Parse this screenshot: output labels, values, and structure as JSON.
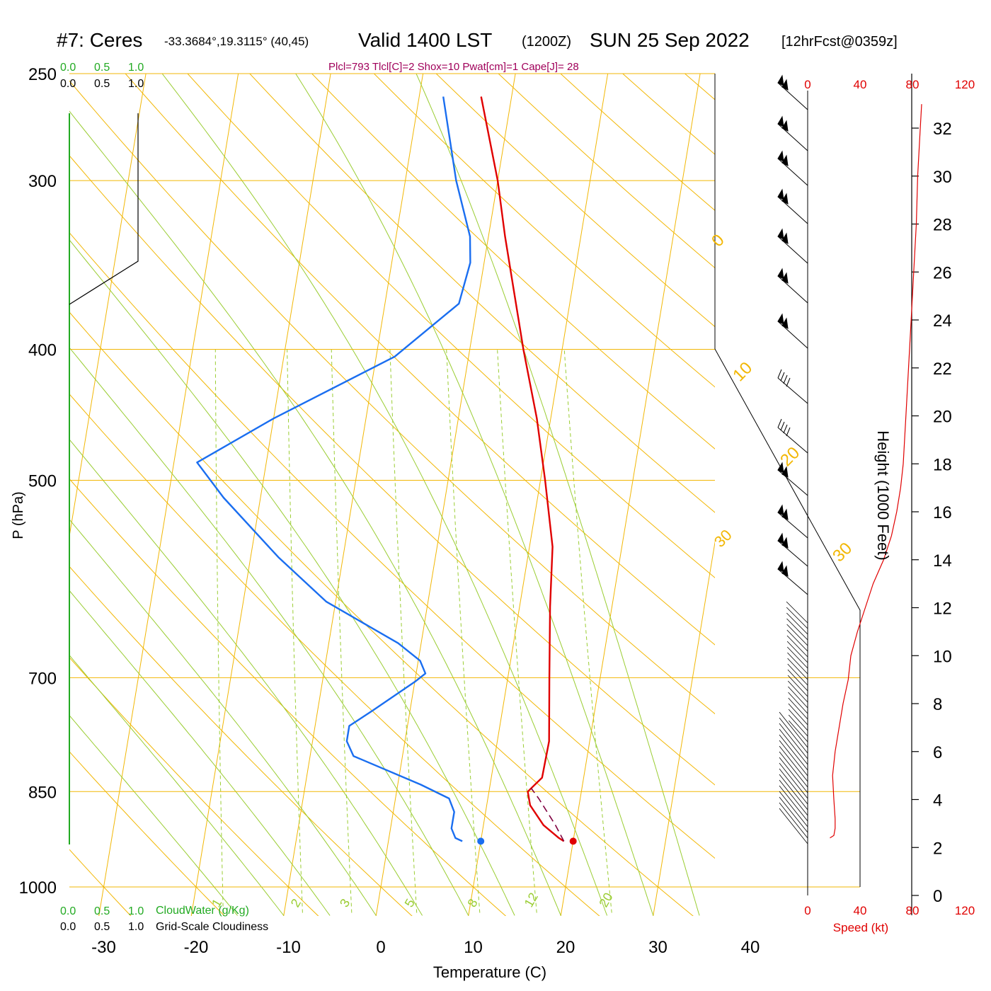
{
  "header": {
    "station": "#7: Ceres",
    "coords": "-33.3684°,19.3115° (40,45)",
    "valid": "Valid 1400 LST",
    "zulu": "(1200Z)",
    "date": "SUN 25 Sep 2022",
    "forecast": "[12hrFcst@0359z]",
    "indices": "Plcl=793 Tlcl[C]=2 Shox=10 Pwat[cm]=1 Cape[J]= 28"
  },
  "colors": {
    "isobar": "#f2b705",
    "dry_adiabat": "#f2b705",
    "moist_adiabat": "#9acd32",
    "mixing_ratio": "#9acd32",
    "temperature": "#e00000",
    "dewpoint": "#1a6ef0",
    "parcel": "#800040",
    "cloudwater": "#22aa22",
    "speed": "#e00000",
    "indices_text": "#a0005a"
  },
  "cloud_scales": {
    "cloudwater_ticks": [
      "0.0",
      "0.5",
      "1.0"
    ],
    "cloudiness_ticks": [
      "0.0",
      "0.5",
      "1.0"
    ],
    "cloudwater_label": "CloudWater (g/Kg)",
    "cloudiness_label": "Grid-Scale Cloudiness"
  },
  "axes": {
    "xlabel": "Temperature (C)",
    "ylabel": "P (hPa)",
    "right_label": "Height (1000 Feet)",
    "speed_label": "Speed (kt)",
    "x_ticks": [
      -30,
      -20,
      -10,
      0,
      10,
      20,
      30,
      40
    ],
    "p_ticks": [
      250,
      300,
      400,
      500,
      700,
      850,
      1000
    ],
    "height_ticks": [
      0,
      2,
      4,
      6,
      8,
      10,
      12,
      14,
      16,
      18,
      20,
      22,
      24,
      26,
      28,
      30,
      32
    ],
    "speed_ticks": [
      0,
      40,
      80,
      120
    ],
    "xlim": [
      -33,
      36
    ],
    "plim": [
      250,
      1025
    ],
    "height_lim": [
      0,
      33
    ],
    "speed_lim": [
      0,
      120
    ]
  },
  "chart_data": {
    "type": "line",
    "title": "#7: Ceres Valid 1400 LST (1200Z) SUN 25 Sep 2022 [12hrFcst@0359z]",
    "xlabel": "Temperature (C)",
    "ylabel": "P (hPa)",
    "yscale": "log",
    "skew_per_decade": 24.2,
    "series": [
      {
        "name": "Temperature",
        "points": [
          [
            260,
            -3.3
          ],
          [
            300,
            0
          ],
          [
            330,
            1.8
          ],
          [
            400,
            5.8
          ],
          [
            450,
            8.5
          ],
          [
            500,
            10.5
          ],
          [
            560,
            12.5
          ],
          [
            620,
            13.3
          ],
          [
            700,
            14.5
          ],
          [
            780,
            15.6
          ],
          [
            830,
            15.5
          ],
          [
            850,
            14.2
          ],
          [
            870,
            14.7
          ],
          [
            900,
            16.5
          ],
          [
            920,
            18.4
          ],
          [
            925,
            19.0
          ]
        ]
      },
      {
        "name": "Dewpoint",
        "points": [
          [
            260,
            -7.4
          ],
          [
            300,
            -4.5
          ],
          [
            330,
            -2.0
          ],
          [
            345,
            -1.5
          ],
          [
            370,
            -2.0
          ],
          [
            405,
            -8.0
          ],
          [
            450,
            -20.0
          ],
          [
            485,
            -27.5
          ],
          [
            515,
            -24.0
          ],
          [
            570,
            -17.0
          ],
          [
            615,
            -11.0
          ],
          [
            660,
            -2.5
          ],
          [
            680,
            0.2
          ],
          [
            695,
            1.0
          ],
          [
            705,
            0.0
          ],
          [
            740,
            -4.0
          ],
          [
            760,
            -6.3
          ],
          [
            780,
            -6.3
          ],
          [
            800,
            -5.3
          ],
          [
            840,
            2.5
          ],
          [
            860,
            5.8
          ],
          [
            880,
            6.6
          ],
          [
            905,
            6.6
          ],
          [
            920,
            7.2
          ],
          [
            925,
            8.0
          ]
        ]
      },
      {
        "name": "Parcel",
        "points": [
          [
            925,
            19.0
          ],
          [
            900,
            17.8
          ],
          [
            860,
            15.5
          ],
          [
            845,
            14.5
          ]
        ]
      },
      {
        "name": "Surface Temperature",
        "points": [
          [
            925,
            20.0
          ]
        ]
      },
      {
        "name": "Surface Dewpoint",
        "points": [
          [
            925,
            10.0
          ]
        ]
      },
      {
        "name": "Wind Speed",
        "axis": "height_vs_speed",
        "points": [
          [
            2.4,
            17
          ],
          [
            2.5,
            20
          ],
          [
            2.8,
            21
          ],
          [
            3.2,
            21
          ],
          [
            4.0,
            20
          ],
          [
            5.0,
            19
          ],
          [
            6.0,
            21
          ],
          [
            7.0,
            24
          ],
          [
            8.0,
            27
          ],
          [
            9.0,
            31
          ],
          [
            10.0,
            33
          ],
          [
            11.0,
            38
          ],
          [
            12.0,
            44
          ],
          [
            13.0,
            50
          ],
          [
            14.0,
            58
          ],
          [
            15.0,
            64
          ],
          [
            16.0,
            68
          ],
          [
            17.0,
            71
          ],
          [
            18.0,
            73
          ],
          [
            20.0,
            75
          ],
          [
            22.0,
            77
          ],
          [
            24.0,
            79
          ],
          [
            26.0,
            81
          ],
          [
            28.0,
            83
          ],
          [
            30.0,
            84
          ],
          [
            32.0,
            86
          ],
          [
            33.0,
            87
          ]
        ]
      }
    ],
    "isotherm_labels": [
      -30,
      -20,
      -10,
      0,
      10,
      20,
      30
    ],
    "mixing_ratio_labels": [
      "1",
      "2",
      "3",
      "5",
      "8",
      "12",
      "20"
    ],
    "height_profile": [
      [
        1000,
        0
      ],
      [
        400,
        24
      ],
      [
        250,
        24
      ]
    ]
  }
}
